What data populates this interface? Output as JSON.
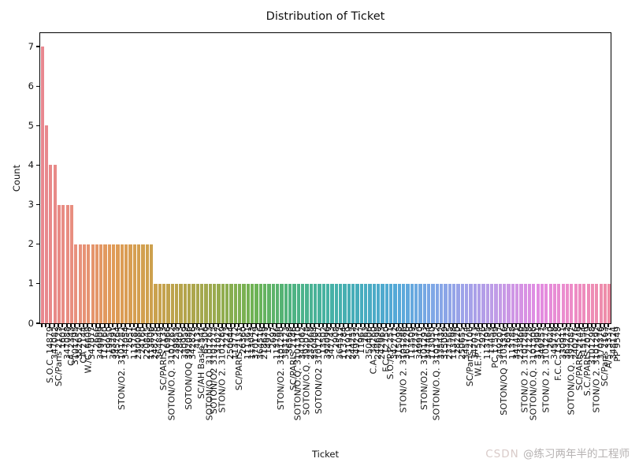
{
  "watermark": {
    "brand": "CSDN ",
    "user": "@练习两年半的工程师"
  },
  "chart_data": {
    "type": "bar",
    "title": "Distribution of Ticket",
    "xlabel": "Ticket",
    "ylabel": "Count",
    "ylim": [
      0,
      7.36
    ],
    "yticks": [
      0,
      1,
      2,
      3,
      4,
      5,
      6,
      7
    ],
    "grid": false,
    "legend": null,
    "x_tick_rotation_deg": 90,
    "palette": [
      "#e8878f",
      "#e8907c",
      "#e09b57",
      "#cfa14e",
      "#b5a44c",
      "#96ab4f",
      "#6db354",
      "#4fb37f",
      "#46b2a2",
      "#47acbe",
      "#55a9d8",
      "#7da7e6",
      "#a3a2e9",
      "#c79ae6",
      "#e28ce2",
      "#ee8cc6",
      "#ee8da6"
    ],
    "categories": [
      "S.O.C. 14879",
      "347082",
      "SC/Paris 2123",
      "1601",
      "347088",
      "CA. 2343",
      "3101295",
      "382652",
      "CA 2144",
      "W./C. 6608",
      "347077",
      "2666",
      "349909",
      "113760",
      "19950",
      "363291",
      "345764",
      "STON/O2. 3101282",
      "347054",
      "2651",
      "113781",
      "230080",
      "24160",
      "220845",
      "113806",
      "248738",
      "364849",
      "SC/PARIS 2133",
      "16966",
      "SOTON/O.Q. 3101262",
      "239853",
      "28403",
      "330959",
      "SOTON/OQ 392086",
      "342826",
      "4133",
      "SC/AH Basle 541",
      "65306",
      "SOTON/O.Q. 3101263",
      "SOTON/O2 3101272",
      "31027",
      "STON/O 2. 3101269",
      "2223",
      "250644",
      "113772",
      "SC/PARIS 2131",
      "26360",
      "111361",
      "113043",
      "370129",
      "364516",
      "218629",
      "14973",
      "2697",
      "113786",
      "STON/O2. 3101290",
      "383123",
      "36568",
      "SC/PARIS 2146",
      "SOTON/O.Q. 3101310",
      "347062",
      "SOTON/O.Q. 392078",
      "237668",
      "350404",
      "SOTON/O2 3101287",
      "13502",
      "392096",
      "347743",
      "2908",
      "364512",
      "113784",
      "231919",
      "244252",
      "349237",
      "11967",
      "263",
      "350406",
      "C.A. 34260",
      "248698",
      "242963",
      "F.C. 12750",
      "S.O./P.P. 251",
      "342712",
      "315098",
      "STON/O 2. 3101286",
      "367226",
      "113509",
      "12233",
      "349910",
      "STON/O2. 3101293",
      "347464",
      "113050",
      "SOTON/O.Q. 3101312",
      "335432",
      "315089",
      "237565",
      "113798",
      "28220",
      "250655",
      "345774",
      "SC/Paris 2106",
      "347073",
      "W.E.P. 5734",
      "2926",
      "113795",
      "17453",
      "PC 17599",
      "349207",
      "SOTON/OQ 3101316",
      "2695",
      "113788",
      "347471",
      "233866",
      "STON/O 2. 3101288",
      "21228",
      "SOTON/O.Q. 3101306",
      "312991",
      "349257",
      "STON/O 2. 3101273",
      "2620",
      "345778",
      "F.C.C. 13528",
      "330911",
      "363272",
      "SOTON/O.Q. 392087",
      "240276",
      "SC/PARIS 2149",
      "315154",
      "S.C./PARIS 2079",
      "3101298",
      "STON/O 2. 3101292",
      "370376",
      "SC/Paris 2163",
      "A/5. 3337",
      "348124",
      "PP 9549"
    ],
    "values": [
      7,
      5,
      4,
      4,
      3,
      3,
      3,
      3,
      2,
      2,
      2,
      2,
      2,
      2,
      2,
      2,
      2,
      2,
      2,
      2,
      2,
      2,
      2,
      2,
      2,
      2,
      2,
      1,
      1,
      1,
      1,
      1,
      1,
      1,
      1,
      1,
      1,
      1,
      1,
      1,
      1,
      1,
      1,
      1,
      1,
      1,
      1,
      1,
      1,
      1,
      1,
      1,
      1,
      1,
      1,
      1,
      1,
      1,
      1,
      1,
      1,
      1,
      1,
      1,
      1,
      1,
      1,
      1,
      1,
      1,
      1,
      1,
      1,
      1,
      1,
      1,
      1,
      1,
      1,
      1,
      1,
      1,
      1,
      1,
      1,
      1,
      1,
      1,
      1,
      1,
      1,
      1,
      1,
      1,
      1,
      1,
      1,
      1,
      1,
      1,
      1,
      1,
      1,
      1,
      1,
      1,
      1,
      1,
      1,
      1,
      1,
      1,
      1,
      1,
      1,
      1,
      1,
      1,
      1,
      1,
      1,
      1,
      1,
      1,
      1,
      1,
      1,
      1,
      1,
      1,
      1,
      1,
      1,
      1,
      1,
      1
    ]
  }
}
